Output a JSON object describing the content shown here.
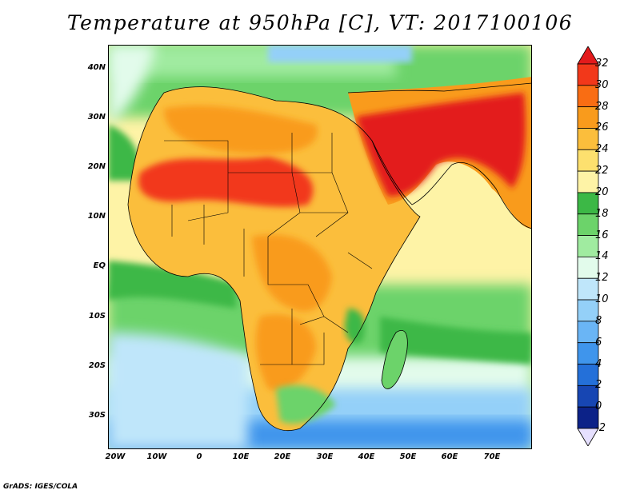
{
  "title": "Temperature at 950hPa [C], VT: 2017100106",
  "footer": "GrADS: IGES/COLA",
  "lat_ticks": [
    "40N",
    "30N",
    "20N",
    "10N",
    "EQ",
    "10S",
    "20S",
    "30S"
  ],
  "lon_ticks": [
    "20W",
    "10W",
    "0",
    "10E",
    "20E",
    "30E",
    "40E",
    "50E",
    "60E",
    "70E"
  ],
  "colorbar": {
    "labels": [
      "32",
      "30",
      "28",
      "26",
      "24",
      "22",
      "20",
      "18",
      "16",
      "14",
      "12",
      "10",
      "8",
      "6",
      "4",
      "2",
      "0",
      "-2"
    ],
    "colors": [
      "#e31a1c",
      "#f2381a",
      "#f96d13",
      "#f99b1c",
      "#fbbe3c",
      "#fde06e",
      "#fef3a6",
      "#3cb846",
      "#6cd36a",
      "#a0eba0",
      "#e2fbeb",
      "#bfe6fa",
      "#94d0f8",
      "#6ab5f5",
      "#3f95ec",
      "#2470d9",
      "#1746b3",
      "#0c2288",
      "#10105a"
    ]
  }
}
